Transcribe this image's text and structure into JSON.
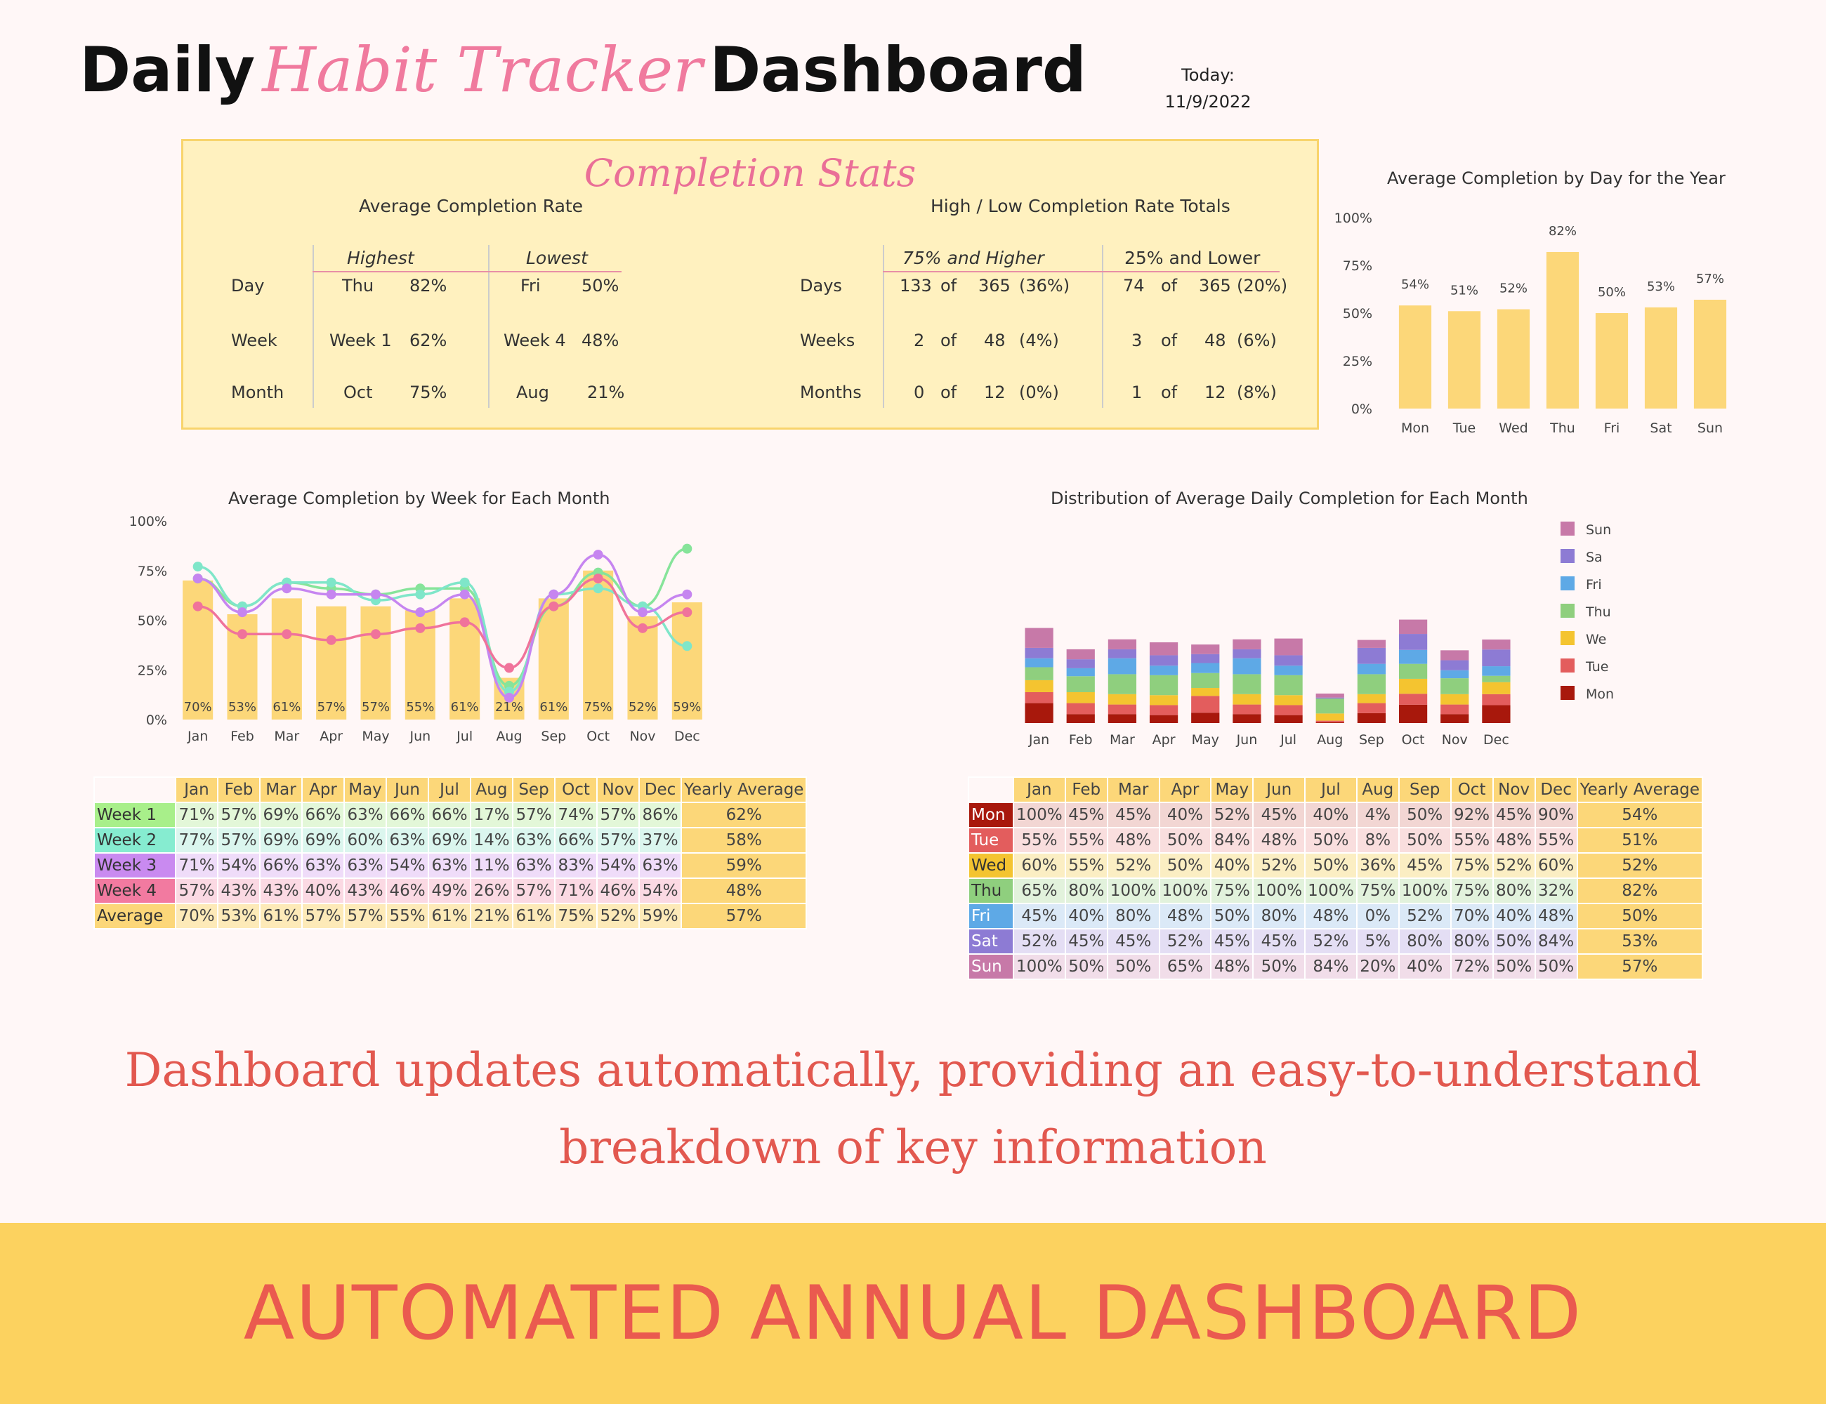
{
  "header": {
    "title_a": "Daily",
    "title_b": "Habit Tracker",
    "title_c": "Dashboard",
    "today_label": "Today:",
    "today_date": "11/9/2022"
  },
  "stats": {
    "title": "Completion Stats",
    "avg_heading": "Average Completion Rate",
    "highest": "Highest",
    "lowest": "Lowest",
    "rows": [
      {
        "label": "Day",
        "hi": "Thu",
        "hi_pct": "82%",
        "lo": "Fri",
        "lo_pct": "50%"
      },
      {
        "label": "Week",
        "hi": "Week 1",
        "hi_pct": "62%",
        "lo": "Week 4",
        "lo_pct": "48%"
      },
      {
        "label": "Month",
        "hi": "Oct",
        "hi_pct": "75%",
        "lo": "Aug",
        "lo_pct": "21%"
      }
    ],
    "hl_heading": "High / Low Completion Rate Totals",
    "high_col": "75% and Higher",
    "low_col": "25% and Lower",
    "of": "of",
    "totals": [
      {
        "label": "Days",
        "h_n": "133",
        "h_d": "365",
        "h_p": "(36%)",
        "l_n": "74",
        "l_d": "365",
        "l_p": "(20%)"
      },
      {
        "label": "Weeks",
        "h_n": "2",
        "h_d": "48",
        "h_p": "(4%)",
        "l_n": "3",
        "l_d": "48",
        "l_p": "(6%)"
      },
      {
        "label": "Months",
        "h_n": "0",
        "h_d": "12",
        "h_p": "(0%)",
        "l_n": "1",
        "l_d": "12",
        "l_p": "(8%)"
      }
    ]
  },
  "chart_data": [
    {
      "type": "bar",
      "title": "Average Completion by Day for the Year",
      "categories": [
        "Mon",
        "Tue",
        "Wed",
        "Thu",
        "Fri",
        "Sat",
        "Sun"
      ],
      "values": [
        54,
        51,
        52,
        82,
        50,
        53,
        57
      ],
      "data_labels": [
        "54%",
        "51%",
        "52%",
        "82%",
        "50%",
        "53%",
        "57%"
      ],
      "yticks": [
        "0%",
        "25%",
        "50%",
        "75%",
        "100%"
      ],
      "ylim": [
        0,
        100
      ],
      "bar_color": "#fcd779"
    },
    {
      "type": "bar+line",
      "title": "Average Completion by Week for Each Month",
      "categories": [
        "Jan",
        "Feb",
        "Mar",
        "Apr",
        "May",
        "Jun",
        "Jul",
        "Aug",
        "Sep",
        "Oct",
        "Nov",
        "Dec"
      ],
      "bar_values": [
        70,
        53,
        61,
        57,
        57,
        55,
        61,
        21,
        61,
        75,
        52,
        59
      ],
      "data_labels": [
        "70%",
        "53%",
        "61%",
        "57%",
        "57%",
        "55%",
        "61%",
        "21%",
        "61%",
        "75%",
        "52%",
        "59%"
      ],
      "series": [
        {
          "values": [
            71,
            57,
            69,
            66,
            63,
            66,
            66,
            17,
            57,
            74,
            57,
            86
          ],
          "color": "#86e49a"
        },
        {
          "values": [
            77,
            57,
            69,
            69,
            60,
            63,
            69,
            14,
            63,
            66,
            57,
            37
          ],
          "color": "#7fe6c9"
        },
        {
          "values": [
            71,
            54,
            66,
            63,
            63,
            54,
            63,
            11,
            63,
            83,
            54,
            63
          ],
          "color": "#c685f0"
        },
        {
          "values": [
            57,
            43,
            43,
            40,
            43,
            46,
            49,
            26,
            57,
            71,
            46,
            54
          ],
          "color": "#f0739b"
        }
      ],
      "yticks": [
        "0%",
        "25%",
        "50%",
        "75%",
        "100%"
      ],
      "ylim": [
        0,
        100
      ],
      "bar_color": "#fcd779"
    },
    {
      "type": "stacked-bar",
      "title": "Distribution of Average Daily Completion for Each Month",
      "categories": [
        "Jan",
        "Feb",
        "Mar",
        "Apr",
        "May",
        "Jun",
        "Jul",
        "Aug",
        "Sep",
        "Oct",
        "Nov",
        "Dec"
      ],
      "series": [
        {
          "name": "Mon",
          "color": "#a8180c",
          "values": [
            100,
            45,
            45,
            40,
            52,
            45,
            40,
            4,
            50,
            92,
            45,
            90
          ]
        },
        {
          "name": "Tue",
          "color": "#e35d5d",
          "values": [
            55,
            55,
            48,
            50,
            84,
            48,
            50,
            8,
            50,
            55,
            48,
            55
          ]
        },
        {
          "name": "Wed",
          "color": "#f4c430",
          "values": [
            60,
            55,
            52,
            50,
            40,
            52,
            50,
            36,
            45,
            75,
            52,
            60
          ]
        },
        {
          "name": "Thu",
          "color": "#8fcf7e",
          "values": [
            65,
            80,
            100,
            100,
            75,
            100,
            100,
            75,
            100,
            75,
            80,
            32
          ]
        },
        {
          "name": "Fri",
          "color": "#5ea9e6",
          "values": [
            45,
            40,
            80,
            48,
            50,
            80,
            48,
            0,
            52,
            70,
            40,
            48
          ]
        },
        {
          "name": "Sat",
          "color": "#8d7bd4",
          "values": [
            52,
            45,
            45,
            52,
            45,
            45,
            52,
            5,
            80,
            80,
            50,
            84
          ]
        },
        {
          "name": "Sun",
          "color": "#c779a8",
          "values": [
            100,
            50,
            50,
            65,
            48,
            50,
            84,
            20,
            40,
            72,
            50,
            50
          ]
        }
      ],
      "legend_placement": "right",
      "legend_labels": [
        "Sun",
        "Sa",
        "Fri",
        "Thu",
        "We",
        "Tue",
        "Mon"
      ]
    }
  ],
  "week_table": {
    "months": [
      "Jan",
      "Feb",
      "Mar",
      "Apr",
      "May",
      "Jun",
      "Jul",
      "Aug",
      "Sep",
      "Oct",
      "Nov",
      "Dec"
    ],
    "yearly_label": "Yearly Average",
    "rows": [
      {
        "label": "Week 1",
        "color": "#a8ef8a",
        "tint": "#e3f7d8",
        "cells": [
          "71%",
          "57%",
          "69%",
          "66%",
          "63%",
          "66%",
          "66%",
          "17%",
          "57%",
          "74%",
          "57%",
          "86%"
        ],
        "avg": "62%"
      },
      {
        "label": "Week 2",
        "color": "#86ecd0",
        "tint": "#dbf6ee",
        "cells": [
          "77%",
          "57%",
          "69%",
          "69%",
          "60%",
          "63%",
          "69%",
          "14%",
          "63%",
          "66%",
          "57%",
          "37%"
        ],
        "avg": "58%"
      },
      {
        "label": "Week 3",
        "color": "#c98af0",
        "tint": "#efdcf9",
        "cells": [
          "71%",
          "54%",
          "66%",
          "63%",
          "63%",
          "54%",
          "63%",
          "11%",
          "63%",
          "83%",
          "54%",
          "63%"
        ],
        "avg": "59%"
      },
      {
        "label": "Week 4",
        "color": "#f27aa0",
        "tint": "#fbd9e3",
        "cells": [
          "57%",
          "43%",
          "43%",
          "40%",
          "43%",
          "46%",
          "49%",
          "26%",
          "57%",
          "71%",
          "46%",
          "54%"
        ],
        "avg": "48%"
      },
      {
        "label": "Average",
        "color": "#fcd779",
        "tint": "#fdeab8",
        "cells": [
          "70%",
          "53%",
          "61%",
          "57%",
          "57%",
          "55%",
          "61%",
          "21%",
          "61%",
          "75%",
          "52%",
          "59%"
        ],
        "avg": "57%"
      }
    ]
  },
  "day_table": {
    "months": [
      "Jan",
      "Feb",
      "Mar",
      "Apr",
      "May",
      "Jun",
      "Jul",
      "Aug",
      "Sep",
      "Oct",
      "Nov",
      "Dec"
    ],
    "yearly_label": "Yearly Average",
    "rows": [
      {
        "label": "Mon",
        "color": "#a8180c",
        "fg": "#ffffff",
        "tint": "#f2d6d3",
        "cells": [
          "100%",
          "45%",
          "45%",
          "40%",
          "52%",
          "45%",
          "40%",
          "4%",
          "50%",
          "92%",
          "45%",
          "90%"
        ],
        "avg": "54%"
      },
      {
        "label": "Tue",
        "color": "#e35d5d",
        "fg": "#ffffff",
        "tint": "#f9dede",
        "cells": [
          "55%",
          "55%",
          "48%",
          "50%",
          "84%",
          "48%",
          "50%",
          "8%",
          "50%",
          "55%",
          "48%",
          "55%"
        ],
        "avg": "51%"
      },
      {
        "label": "Wed",
        "color": "#f4c430",
        "fg": "#333333",
        "tint": "#fbeec3",
        "cells": [
          "60%",
          "55%",
          "52%",
          "50%",
          "40%",
          "52%",
          "50%",
          "36%",
          "45%",
          "75%",
          "52%",
          "60%"
        ],
        "avg": "52%"
      },
      {
        "label": "Thu",
        "color": "#8fcf7e",
        "fg": "#333333",
        "tint": "#e2f2dc",
        "cells": [
          "65%",
          "80%",
          "100%",
          "100%",
          "75%",
          "100%",
          "100%",
          "75%",
          "100%",
          "75%",
          "80%",
          "32%"
        ],
        "avg": "82%"
      },
      {
        "label": "Fri",
        "color": "#5ea9e6",
        "fg": "#ffffff",
        "tint": "#dbe9f7",
        "cells": [
          "45%",
          "40%",
          "80%",
          "48%",
          "50%",
          "80%",
          "48%",
          "0%",
          "52%",
          "70%",
          "40%",
          "48%"
        ],
        "avg": "50%"
      },
      {
        "label": "Sat",
        "color": "#8d7bd4",
        "fg": "#ffffff",
        "tint": "#e4def4",
        "cells": [
          "52%",
          "45%",
          "45%",
          "52%",
          "45%",
          "45%",
          "52%",
          "5%",
          "80%",
          "80%",
          "50%",
          "84%"
        ],
        "avg": "53%"
      },
      {
        "label": "Sun",
        "color": "#c779a8",
        "fg": "#ffffff",
        "tint": "#f1dde9",
        "cells": [
          "100%",
          "50%",
          "50%",
          "65%",
          "48%",
          "50%",
          "84%",
          "20%",
          "40%",
          "72%",
          "50%",
          "50%"
        ],
        "avg": "57%"
      }
    ]
  },
  "footer": {
    "line1": "Dashboard updates automatically, providing an easy-to-understand",
    "line2": "breakdown of key information",
    "banner": "AUTOMATED ANNUAL DASHBOARD"
  }
}
